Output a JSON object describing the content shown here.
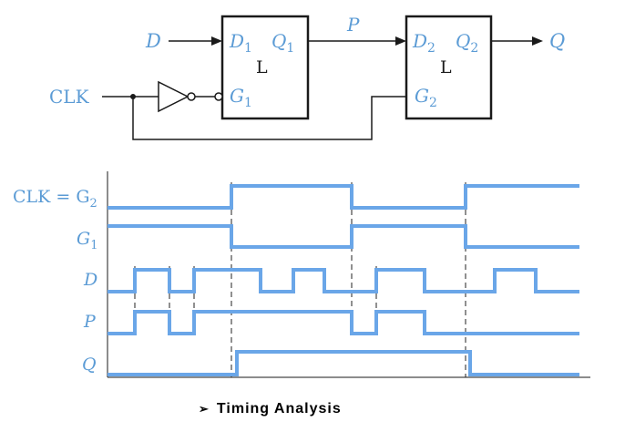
{
  "circuit": {
    "input_d": "D",
    "input_clk": "CLK",
    "latch1": {
      "d": "D",
      "d_sub": "1",
      "q": "Q",
      "q_sub": "1",
      "g": "G",
      "g_sub": "1",
      "type": "L"
    },
    "latch2": {
      "d": "D",
      "d_sub": "2",
      "q": "Q",
      "q_sub": "2",
      "g": "G",
      "g_sub": "2",
      "type": "L"
    },
    "internal_node": "P",
    "output": "Q"
  },
  "timing": {
    "signals": [
      {
        "id": "clk",
        "label": "CLK = G",
        "label_sub": "2"
      },
      {
        "id": "g1",
        "label": "G",
        "label_sub": "1"
      },
      {
        "id": "d",
        "label": "D",
        "label_sub": ""
      },
      {
        "id": "p",
        "label": "P",
        "label_sub": ""
      },
      {
        "id": "q",
        "label": "Q",
        "label_sub": ""
      }
    ]
  },
  "caption": {
    "bullet": "➢",
    "text": "Timing Analysis"
  },
  "colors": {
    "signal": "#6aa6e8",
    "label": "#5b9bd5",
    "wire": "#1a1a1a"
  }
}
